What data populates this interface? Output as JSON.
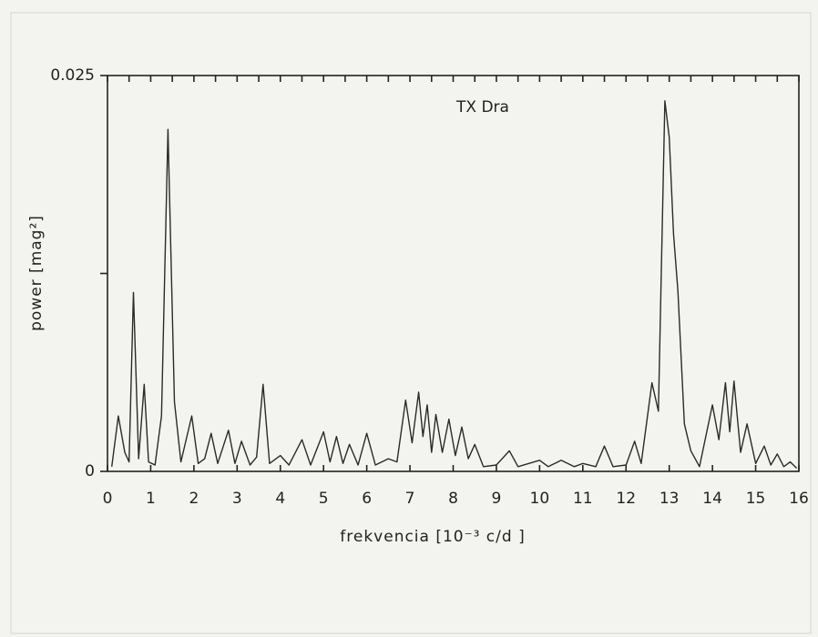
{
  "chart_data": {
    "type": "line",
    "annotation": "TX Dra",
    "xlabel": "frekvencia [10⁻³ c/d ]",
    "ylabel": "power [mag²]",
    "xlim": [
      0,
      16
    ],
    "ylim": [
      0,
      0.025
    ],
    "xticks": [
      0,
      1,
      2,
      3,
      4,
      5,
      6,
      7,
      8,
      9,
      10,
      11,
      12,
      13,
      14,
      15,
      16
    ],
    "top_minor_ticks": [
      0,
      0.5,
      1,
      1.5,
      2,
      2.5,
      3,
      3.5,
      4,
      4.5,
      5,
      5.5,
      6,
      6.5,
      7,
      7.5,
      8,
      8.5,
      9,
      9.5,
      10,
      10.5,
      11,
      11.5,
      12,
      12.5,
      13,
      13.5,
      14,
      14.5,
      15,
      15.5,
      16
    ],
    "yticks": [
      0,
      0.025
    ],
    "y_minor_ticks": [
      0.0125
    ],
    "color": "#2a2a2a",
    "x": [
      0.1,
      0.25,
      0.4,
      0.5,
      0.6,
      0.72,
      0.85,
      0.95,
      1.1,
      1.25,
      1.4,
      1.55,
      1.7,
      1.95,
      2.1,
      2.25,
      2.4,
      2.55,
      2.8,
      2.95,
      3.1,
      3.3,
      3.45,
      3.6,
      3.75,
      4.0,
      4.2,
      4.5,
      4.7,
      5.0,
      5.15,
      5.3,
      5.45,
      5.6,
      5.8,
      6.0,
      6.2,
      6.5,
      6.7,
      6.9,
      7.05,
      7.2,
      7.3,
      7.4,
      7.5,
      7.6,
      7.75,
      7.9,
      8.05,
      8.2,
      8.35,
      8.5,
      8.7,
      9.0,
      9.3,
      9.5,
      10.0,
      10.2,
      10.5,
      10.8,
      11.0,
      11.3,
      11.5,
      11.7,
      12.0,
      12.2,
      12.35,
      12.6,
      12.75,
      12.9,
      13.0,
      13.1,
      13.2,
      13.35,
      13.5,
      13.7,
      14.0,
      14.15,
      14.3,
      14.4,
      14.5,
      14.65,
      14.8,
      15.0,
      15.2,
      15.35,
      15.5,
      15.65,
      15.8,
      15.95
    ],
    "values": [
      0.0003,
      0.0035,
      0.0012,
      0.0006,
      0.0113,
      0.0008,
      0.0055,
      0.0006,
      0.0004,
      0.0035,
      0.0216,
      0.0044,
      0.0006,
      0.0035,
      0.0005,
      0.0008,
      0.0024,
      0.0005,
      0.0026,
      0.0005,
      0.0019,
      0.0004,
      0.0009,
      0.0055,
      0.0005,
      0.001,
      0.0004,
      0.002,
      0.0004,
      0.0025,
      0.0006,
      0.0022,
      0.0005,
      0.0017,
      0.0004,
      0.0024,
      0.0004,
      0.0008,
      0.0006,
      0.0045,
      0.0018,
      0.005,
      0.0022,
      0.0042,
      0.0012,
      0.0036,
      0.0012,
      0.0033,
      0.001,
      0.0028,
      0.0008,
      0.0017,
      0.0003,
      0.0004,
      0.0013,
      0.0003,
      0.0007,
      0.0003,
      0.0007,
      0.0003,
      0.0005,
      0.0003,
      0.0016,
      0.0003,
      0.0004,
      0.0019,
      0.0005,
      0.0056,
      0.0038,
      0.0234,
      0.0211,
      0.015,
      0.0114,
      0.003,
      0.0013,
      0.0003,
      0.0042,
      0.002,
      0.0056,
      0.0025,
      0.0057,
      0.0012,
      0.003,
      0.0005,
      0.0016,
      0.0004,
      0.0011,
      0.0003,
      0.0006,
      0.0002
    ]
  }
}
